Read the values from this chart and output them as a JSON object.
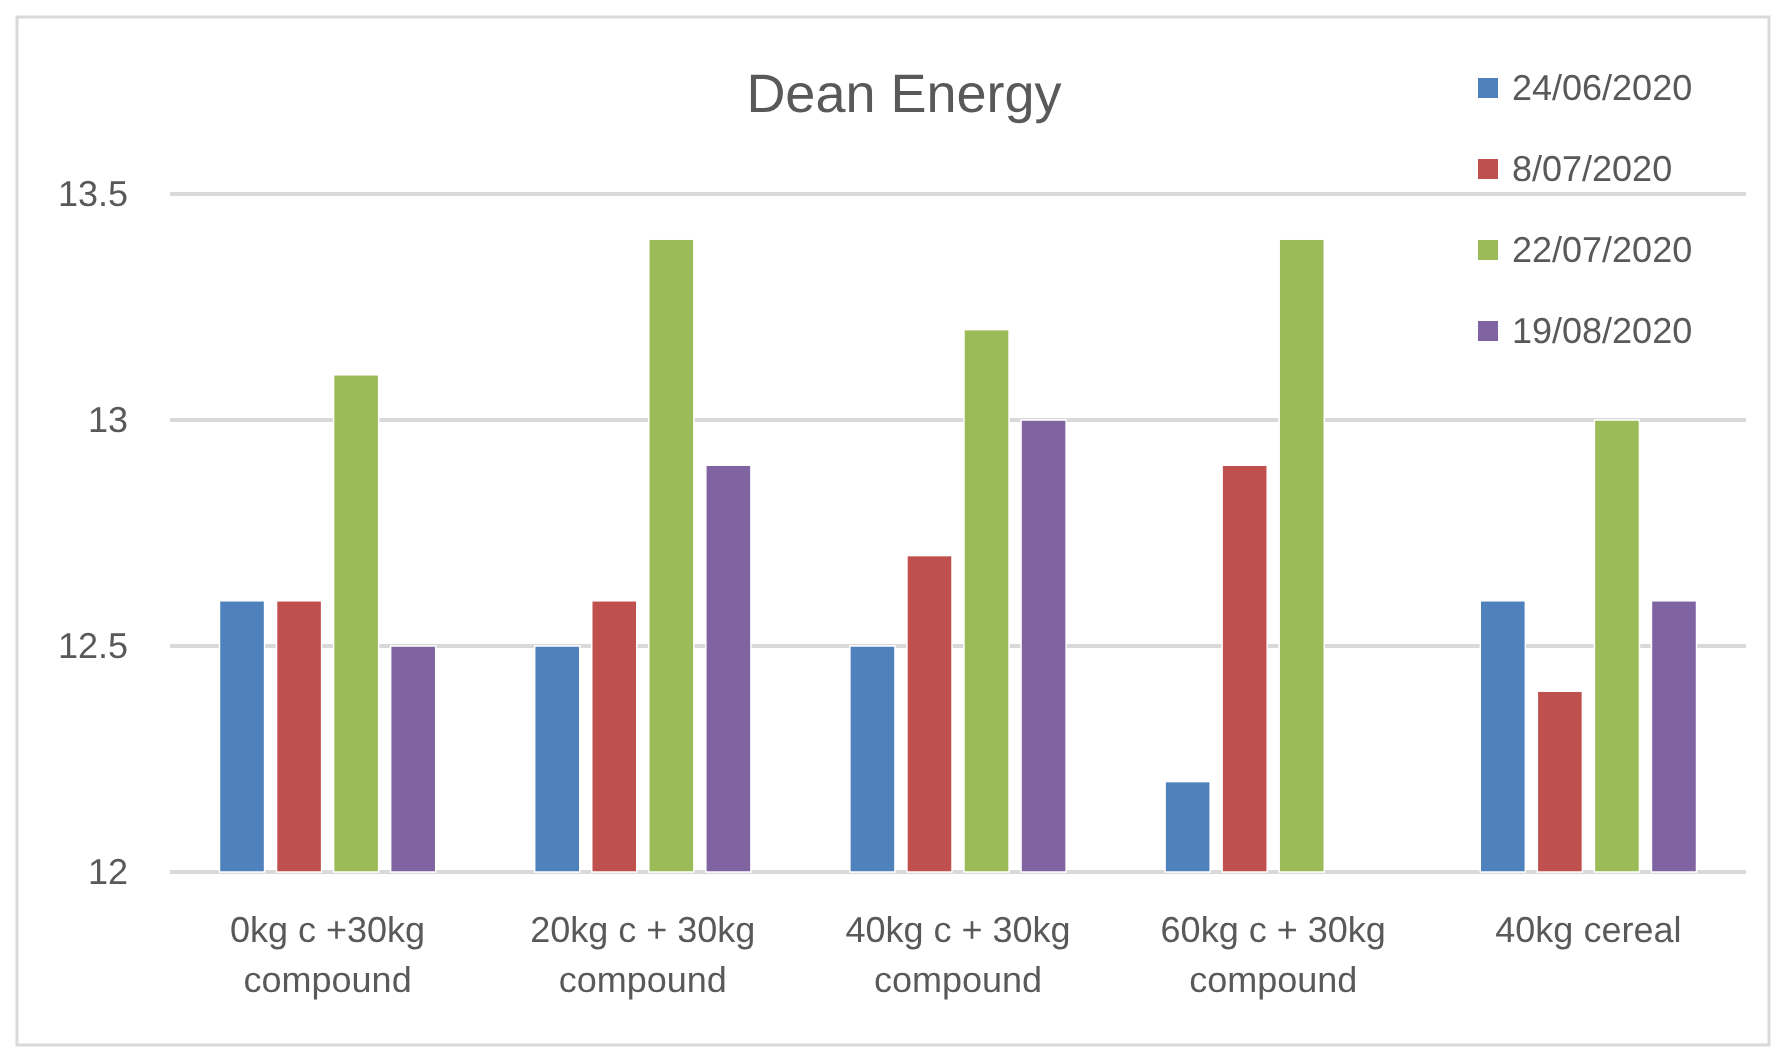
{
  "chart_data": {
    "type": "bar",
    "title": "Dean Energy",
    "categories": [
      "0kg c +30kg compound",
      "20kg c + 30kg compound",
      "40kg c + 30kg compound",
      "60kg c + 30kg compound",
      "40kg cereal"
    ],
    "series": [
      {
        "name": "24/06/2020",
        "color": "#4f81bd",
        "values": [
          12.6,
          12.5,
          12.5,
          12.2,
          12.6
        ]
      },
      {
        "name": "8/07/2020",
        "color": "#c0504d",
        "values": [
          12.6,
          12.6,
          12.7,
          12.9,
          12.4
        ]
      },
      {
        "name": "22/07/2020",
        "color": "#9bbb59",
        "values": [
          13.1,
          13.4,
          13.2,
          13.4,
          13.0
        ]
      },
      {
        "name": "19/08/2020",
        "color": "#8064a2",
        "values": [
          12.5,
          12.9,
          13.0,
          null,
          12.6
        ]
      }
    ],
    "ylim": [
      12,
      13.5
    ],
    "yticks": [
      12,
      12.5,
      13,
      13.5
    ],
    "grid": "y",
    "legend": "top right"
  }
}
